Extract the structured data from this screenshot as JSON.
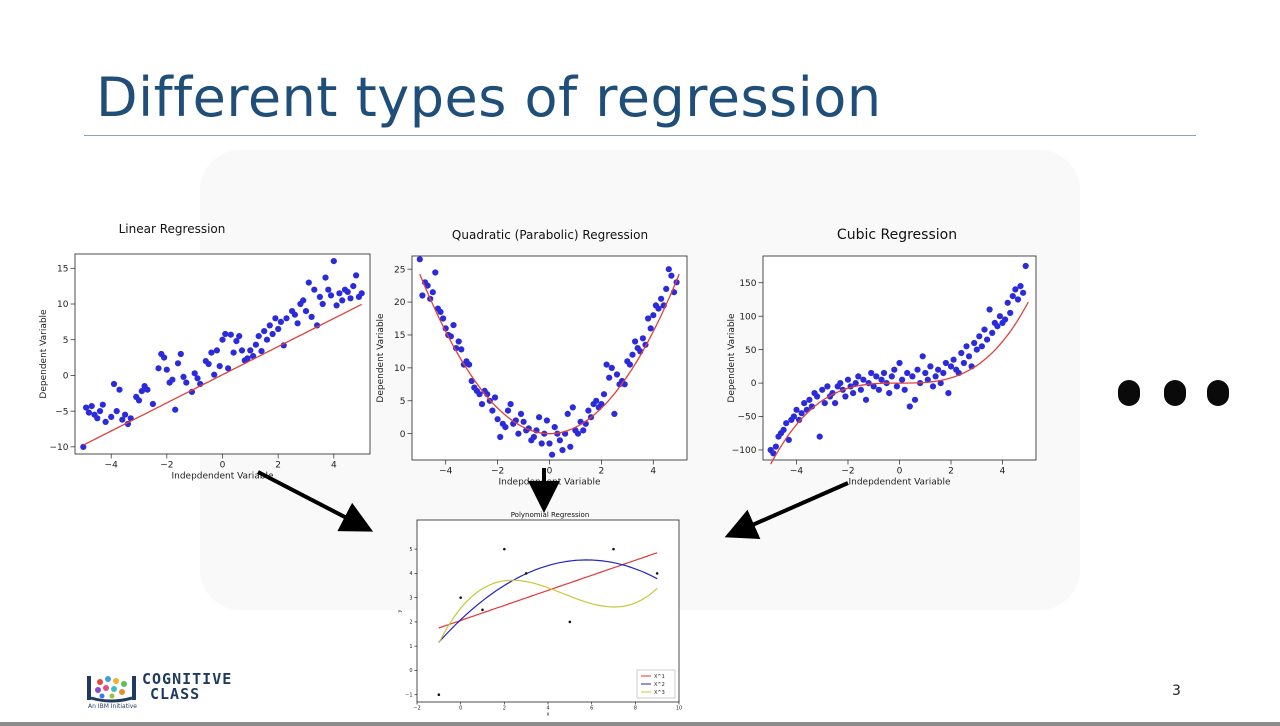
{
  "slide": {
    "title": "Different types of regression",
    "page_number": "3",
    "logo": {
      "line1": "COGNITIVE",
      "line2": "CLASS",
      "tagline": "An IBM Initiative"
    },
    "ellipsis": "●●●"
  },
  "colors": {
    "title": "#1f4e79",
    "points": "#2b2bdb",
    "fit": "#e0403a",
    "poly_deg1": "#e03a3a",
    "poly_deg2": "#2323c8",
    "poly_deg3": "#c8c83a"
  },
  "chart_data": [
    {
      "id": "linear",
      "type": "scatter",
      "title": "Linear Regression",
      "xlabel": "Indepdendent Variable",
      "ylabel": "Dependent Variable",
      "xlim": [
        -5.3,
        5.3
      ],
      "ylim": [
        -11,
        17
      ],
      "xticks": [
        -4,
        -2,
        0,
        2,
        4
      ],
      "yticks": [
        -10,
        -5,
        0,
        5,
        10,
        15
      ],
      "fit": {
        "model": "linear",
        "coeffs": [
          0.1,
          1.97
        ]
      },
      "points": [
        [
          -5.0,
          -10.0
        ],
        [
          -4.9,
          -4.5
        ],
        [
          -4.8,
          -5.2
        ],
        [
          -4.7,
          -4.3
        ],
        [
          -4.6,
          -5.5
        ],
        [
          -4.5,
          -6.0
        ],
        [
          -4.4,
          -5.0
        ],
        [
          -4.3,
          -4.1
        ],
        [
          -4.2,
          -6.5
        ],
        [
          -4.0,
          -5.8
        ],
        [
          -3.9,
          -1.2
        ],
        [
          -3.8,
          -5.0
        ],
        [
          -3.7,
          -2.0
        ],
        [
          -3.6,
          -6.2
        ],
        [
          -3.5,
          -5.5
        ],
        [
          -3.4,
          -6.8
        ],
        [
          -3.3,
          -6.0
        ],
        [
          -3.1,
          -3.0
        ],
        [
          -3.0,
          -3.5
        ],
        [
          -2.9,
          -2.2
        ],
        [
          -2.8,
          -1.5
        ],
        [
          -2.7,
          -2.0
        ],
        [
          -2.5,
          -4.0
        ],
        [
          -2.3,
          1.0
        ],
        [
          -2.2,
          3.0
        ],
        [
          -2.1,
          2.5
        ],
        [
          -2.0,
          0.8
        ],
        [
          -1.9,
          -1.0
        ],
        [
          -1.8,
          -0.6
        ],
        [
          -1.7,
          -4.8
        ],
        [
          -1.6,
          1.7
        ],
        [
          -1.5,
          3.0
        ],
        [
          -1.4,
          -0.2
        ],
        [
          -1.3,
          -1.0
        ],
        [
          -1.1,
          -2.3
        ],
        [
          -1.0,
          0.3
        ],
        [
          -0.9,
          -0.4
        ],
        [
          -0.8,
          -1.2
        ],
        [
          -0.6,
          2.0
        ],
        [
          -0.5,
          1.6
        ],
        [
          -0.4,
          3.2
        ],
        [
          -0.3,
          0.1
        ],
        [
          -0.2,
          3.5
        ],
        [
          -0.1,
          1.3
        ],
        [
          0.0,
          5.0
        ],
        [
          0.1,
          5.8
        ],
        [
          0.2,
          1.0
        ],
        [
          0.3,
          5.7
        ],
        [
          0.4,
          3.2
        ],
        [
          0.5,
          4.8
        ],
        [
          0.6,
          5.5
        ],
        [
          0.7,
          3.5
        ],
        [
          0.8,
          2.1
        ],
        [
          0.9,
          2.4
        ],
        [
          1.0,
          3.5
        ],
        [
          1.1,
          2.7
        ],
        [
          1.2,
          4.3
        ],
        [
          1.3,
          5.5
        ],
        [
          1.4,
          3.4
        ],
        [
          1.5,
          6.2
        ],
        [
          1.6,
          5.0
        ],
        [
          1.7,
          7.0
        ],
        [
          1.8,
          5.8
        ],
        [
          1.9,
          8.0
        ],
        [
          2.0,
          6.5
        ],
        [
          2.1,
          7.5
        ],
        [
          2.2,
          4.2
        ],
        [
          2.3,
          8.0
        ],
        [
          2.5,
          9.0
        ],
        [
          2.6,
          8.5
        ],
        [
          2.7,
          7.3
        ],
        [
          2.8,
          10.0
        ],
        [
          2.9,
          10.5
        ],
        [
          3.0,
          9.0
        ],
        [
          3.1,
          13.0
        ],
        [
          3.2,
          8.2
        ],
        [
          3.3,
          12.0
        ],
        [
          3.4,
          7.0
        ],
        [
          3.5,
          11.0
        ],
        [
          3.6,
          10.0
        ],
        [
          3.7,
          13.7
        ],
        [
          3.8,
          12.0
        ],
        [
          3.9,
          11.2
        ],
        [
          4.0,
          16.0
        ],
        [
          4.1,
          9.8
        ],
        [
          4.2,
          11.5
        ],
        [
          4.3,
          10.5
        ],
        [
          4.4,
          12.0
        ],
        [
          4.5,
          11.7
        ],
        [
          4.6,
          10.8
        ],
        [
          4.7,
          12.5
        ],
        [
          4.8,
          14.0
        ],
        [
          4.9,
          11.0
        ],
        [
          5.0,
          11.5
        ]
      ]
    },
    {
      "id": "quadratic",
      "type": "scatter",
      "title": "Quadratic (Parabolic) Regression",
      "xlabel": "Indepdendent Variable",
      "ylabel": "Dependent Variable",
      "xlim": [
        -5.3,
        5.3
      ],
      "ylim": [
        -4,
        27
      ],
      "xticks": [
        -4,
        -2,
        0,
        2,
        4
      ],
      "yticks": [
        0,
        5,
        10,
        15,
        20,
        25
      ],
      "fit": {
        "model": "quadratic",
        "coeffs": [
          0,
          0,
          0.97
        ]
      },
      "points": [
        [
          -5.0,
          26.5
        ],
        [
          -4.9,
          21.0
        ],
        [
          -4.8,
          23.0
        ],
        [
          -4.7,
          22.5
        ],
        [
          -4.6,
          20.5
        ],
        [
          -4.5,
          21.5
        ],
        [
          -4.4,
          24.5
        ],
        [
          -4.3,
          19.0
        ],
        [
          -4.2,
          18.5
        ],
        [
          -4.1,
          17.5
        ],
        [
          -4.0,
          16.0
        ],
        [
          -3.9,
          15.0
        ],
        [
          -3.8,
          14.8
        ],
        [
          -3.7,
          16.5
        ],
        [
          -3.6,
          13.0
        ],
        [
          -3.5,
          14.0
        ],
        [
          -3.4,
          12.8
        ],
        [
          -3.3,
          10.5
        ],
        [
          -3.2,
          11.0
        ],
        [
          -3.1,
          10.5
        ],
        [
          -3.0,
          8.0
        ],
        [
          -2.9,
          7.0
        ],
        [
          -2.8,
          6.5
        ],
        [
          -2.7,
          6.0
        ],
        [
          -2.6,
          4.5
        ],
        [
          -2.5,
          6.5
        ],
        [
          -2.4,
          6.0
        ],
        [
          -2.3,
          5.0
        ],
        [
          -2.2,
          3.5
        ],
        [
          -2.1,
          5.5
        ],
        [
          -2.0,
          2.2
        ],
        [
          -1.9,
          -0.5
        ],
        [
          -1.8,
          1.5
        ],
        [
          -1.7,
          1.0
        ],
        [
          -1.6,
          3.5
        ],
        [
          -1.5,
          4.5
        ],
        [
          -1.4,
          1.5
        ],
        [
          -1.3,
          2.0
        ],
        [
          -1.2,
          0.0
        ],
        [
          -1.1,
          3.0
        ],
        [
          -1.0,
          1.8
        ],
        [
          -0.9,
          0.5
        ],
        [
          -0.8,
          0.8
        ],
        [
          -0.7,
          -1.0
        ],
        [
          -0.6,
          -0.5
        ],
        [
          -0.5,
          0.5
        ],
        [
          -0.4,
          2.5
        ],
        [
          -0.3,
          -1.5
        ],
        [
          -0.2,
          0.0
        ],
        [
          -0.1,
          2.0
        ],
        [
          0.0,
          -1.5
        ],
        [
          0.1,
          -3.2
        ],
        [
          0.2,
          1.0
        ],
        [
          0.3,
          0.0
        ],
        [
          0.4,
          -1.0
        ],
        [
          0.5,
          -2.5
        ],
        [
          0.6,
          0.0
        ],
        [
          0.7,
          3.0
        ],
        [
          0.8,
          -2.0
        ],
        [
          0.9,
          4.0
        ],
        [
          1.0,
          0.5
        ],
        [
          1.1,
          0.0
        ],
        [
          1.2,
          1.8
        ],
        [
          1.3,
          0.5
        ],
        [
          1.4,
          1.5
        ],
        [
          1.5,
          3.5
        ],
        [
          1.6,
          2.5
        ],
        [
          1.7,
          4.5
        ],
        [
          1.8,
          5.0
        ],
        [
          1.9,
          4.0
        ],
        [
          2.0,
          4.5
        ],
        [
          2.1,
          6.0
        ],
        [
          2.2,
          10.5
        ],
        [
          2.3,
          8.5
        ],
        [
          2.4,
          10.0
        ],
        [
          2.5,
          3.0
        ],
        [
          2.6,
          9.0
        ],
        [
          2.7,
          7.5
        ],
        [
          2.8,
          8.0
        ],
        [
          2.9,
          7.5
        ],
        [
          3.0,
          11.0
        ],
        [
          3.1,
          10.5
        ],
        [
          3.2,
          12.0
        ],
        [
          3.3,
          14.0
        ],
        [
          3.4,
          13.0
        ],
        [
          3.5,
          12.5
        ],
        [
          3.6,
          14.5
        ],
        [
          3.7,
          13.5
        ],
        [
          3.8,
          17.5
        ],
        [
          3.9,
          16.0
        ],
        [
          4.0,
          18.0
        ],
        [
          4.1,
          19.5
        ],
        [
          4.2,
          19.0
        ],
        [
          4.3,
          20.5
        ],
        [
          4.4,
          19.5
        ],
        [
          4.5,
          22.0
        ],
        [
          4.6,
          25.0
        ],
        [
          4.7,
          24.0
        ],
        [
          4.8,
          21.5
        ],
        [
          4.9,
          23.0
        ]
      ]
    },
    {
      "id": "cubic",
      "type": "scatter",
      "title": "Cubic Regression",
      "xlabel": "Indepdendent Variable",
      "ylabel": "Dependent Variable",
      "xlim": [
        -5.3,
        5.3
      ],
      "ylim": [
        -115,
        190
      ],
      "xticks": [
        -4,
        -2,
        0,
        2,
        4
      ],
      "yticks": [
        -100,
        -50,
        0,
        50,
        100,
        150
      ],
      "fit": {
        "model": "cubic",
        "coeffs": [
          0,
          0,
          0,
          0.97
        ]
      },
      "points": [
        [
          -5.0,
          -100.0
        ],
        [
          -4.9,
          -105.0
        ],
        [
          -4.8,
          -95.0
        ],
        [
          -4.7,
          -80.0
        ],
        [
          -4.6,
          -75.0
        ],
        [
          -4.5,
          -70.0
        ],
        [
          -4.4,
          -60.0
        ],
        [
          -4.3,
          -85.0
        ],
        [
          -4.2,
          -55.0
        ],
        [
          -4.1,
          -50.0
        ],
        [
          -4.0,
          -40.0
        ],
        [
          -3.9,
          -55.0
        ],
        [
          -3.8,
          -45.0
        ],
        [
          -3.7,
          -30.0
        ],
        [
          -3.6,
          -40.0
        ],
        [
          -3.5,
          -25.0
        ],
        [
          -3.4,
          -35.0
        ],
        [
          -3.3,
          -15.0
        ],
        [
          -3.2,
          -20.0
        ],
        [
          -3.1,
          -80.0
        ],
        [
          -3.0,
          -10.0
        ],
        [
          -2.9,
          -30.0
        ],
        [
          -2.8,
          -5.0
        ],
        [
          -2.7,
          -20.0
        ],
        [
          -2.6,
          -15.0
        ],
        [
          -2.5,
          -30.0
        ],
        [
          -2.4,
          -5.0
        ],
        [
          -2.3,
          0.0
        ],
        [
          -2.2,
          -10.0
        ],
        [
          -2.1,
          -20.0
        ],
        [
          -2.0,
          5.0
        ],
        [
          -1.9,
          -5.0
        ],
        [
          -1.8,
          -15.0
        ],
        [
          -1.7,
          0.0
        ],
        [
          -1.6,
          10.0
        ],
        [
          -1.5,
          -10.0
        ],
        [
          -1.4,
          5.0
        ],
        [
          -1.3,
          -25.0
        ],
        [
          -1.2,
          0.0
        ],
        [
          -1.1,
          15.0
        ],
        [
          -1.0,
          -5.0
        ],
        [
          -0.9,
          10.0
        ],
        [
          -0.8,
          -10.0
        ],
        [
          -0.7,
          5.0
        ],
        [
          -0.6,
          15.0
        ],
        [
          -0.5,
          0.0
        ],
        [
          -0.4,
          -15.0
        ],
        [
          -0.3,
          10.0
        ],
        [
          -0.2,
          20.0
        ],
        [
          -0.1,
          -5.0
        ],
        [
          0.0,
          30.0
        ],
        [
          0.1,
          5.0
        ],
        [
          0.2,
          -10.0
        ],
        [
          0.3,
          15.0
        ],
        [
          0.4,
          -35.0
        ],
        [
          0.5,
          10.0
        ],
        [
          0.6,
          -25.0
        ],
        [
          0.7,
          20.0
        ],
        [
          0.8,
          0.0
        ],
        [
          0.9,
          40.0
        ],
        [
          1.0,
          15.0
        ],
        [
          1.1,
          5.0
        ],
        [
          1.2,
          25.0
        ],
        [
          1.3,
          -5.0
        ],
        [
          1.4,
          10.0
        ],
        [
          1.5,
          20.0
        ],
        [
          1.6,
          0.0
        ],
        [
          1.7,
          15.0
        ],
        [
          1.8,
          30.0
        ],
        [
          1.9,
          -15.0
        ],
        [
          2.0,
          25.0
        ],
        [
          2.1,
          35.0
        ],
        [
          2.2,
          20.0
        ],
        [
          2.3,
          15.0
        ],
        [
          2.4,
          45.0
        ],
        [
          2.5,
          30.0
        ],
        [
          2.6,
          55.0
        ],
        [
          2.7,
          40.0
        ],
        [
          2.8,
          25.0
        ],
        [
          2.9,
          60.0
        ],
        [
          3.0,
          50.0
        ],
        [
          3.1,
          70.0
        ],
        [
          3.2,
          55.0
        ],
        [
          3.3,
          80.0
        ],
        [
          3.4,
          65.0
        ],
        [
          3.5,
          110.0
        ],
        [
          3.6,
          75.0
        ],
        [
          3.7,
          90.0
        ],
        [
          3.8,
          85.0
        ],
        [
          3.9,
          100.0
        ],
        [
          4.0,
          90.0
        ],
        [
          4.1,
          95.0
        ],
        [
          4.2,
          120.0
        ],
        [
          4.3,
          105.0
        ],
        [
          4.4,
          130.0
        ],
        [
          4.5,
          140.0
        ],
        [
          4.6,
          125.0
        ],
        [
          4.7,
          145.0
        ],
        [
          4.8,
          135.0
        ],
        [
          4.9,
          175.0
        ]
      ]
    },
    {
      "id": "polynomial",
      "type": "line",
      "title": "Polynomial Regression",
      "xlabel": "x",
      "ylabel": "y",
      "xlim": [
        -2,
        10
      ],
      "ylim": [
        -1.3,
        6.2
      ],
      "xticks": [
        -2,
        0,
        2,
        4,
        6,
        8,
        10
      ],
      "yticks": [
        -1,
        0,
        1,
        2,
        3,
        4,
        5
      ],
      "points": [
        [
          -1,
          -1
        ],
        [
          0,
          3
        ],
        [
          1,
          2.5
        ],
        [
          2,
          5
        ],
        [
          3,
          4
        ],
        [
          5,
          2
        ],
        [
          7,
          5
        ],
        [
          9,
          4
        ]
      ],
      "series": [
        {
          "name": "X^1",
          "model": "linear",
          "coeffs": [
            2.06,
            0.31
          ]
        },
        {
          "name": "X^2",
          "model": "quadratic",
          "coeffs": [
            2.09,
            0.854,
            -0.074
          ]
        },
        {
          "name": "X^3",
          "model": "cubic",
          "coeffs": [
            2.56,
            1.1,
            -0.31,
            0.022
          ]
        }
      ]
    }
  ]
}
